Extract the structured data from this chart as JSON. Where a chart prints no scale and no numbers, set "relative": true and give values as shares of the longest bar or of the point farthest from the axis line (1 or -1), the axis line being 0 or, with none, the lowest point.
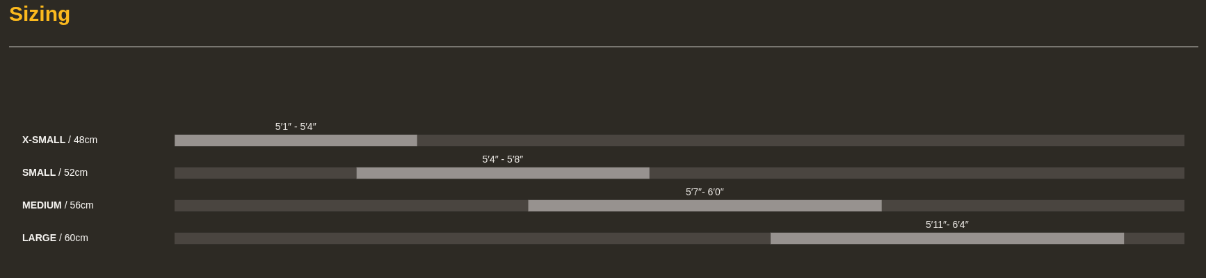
{
  "chart_data": {
    "type": "bar",
    "orientation": "horizontal",
    "stacked": true,
    "relative": true,
    "title": "Sizing",
    "categories": [
      "X-SMALL / 48cm",
      "SMALL / 52cm",
      "MEDIUM / 56cm",
      "LARGE / 60cm"
    ],
    "series": [
      {
        "color": "#4a4540",
        "values": [
          0,
          0.18,
          0.35,
          0.59
        ]
      },
      {
        "color": "#97928f",
        "values": [
          0.24,
          0.29,
          0.35,
          0.35
        ]
      },
      {
        "color": "#4a4540",
        "values": [
          0.76,
          0.53,
          0.3,
          0.06
        ]
      }
    ],
    "annotations": [
      "5′1″ - 5′4″",
      "5′4″ - 5′8″",
      "5′7″- 6′0″",
      "5′11″- 6′4″"
    ],
    "legend": false,
    "tick_labels": "y"
  }
}
